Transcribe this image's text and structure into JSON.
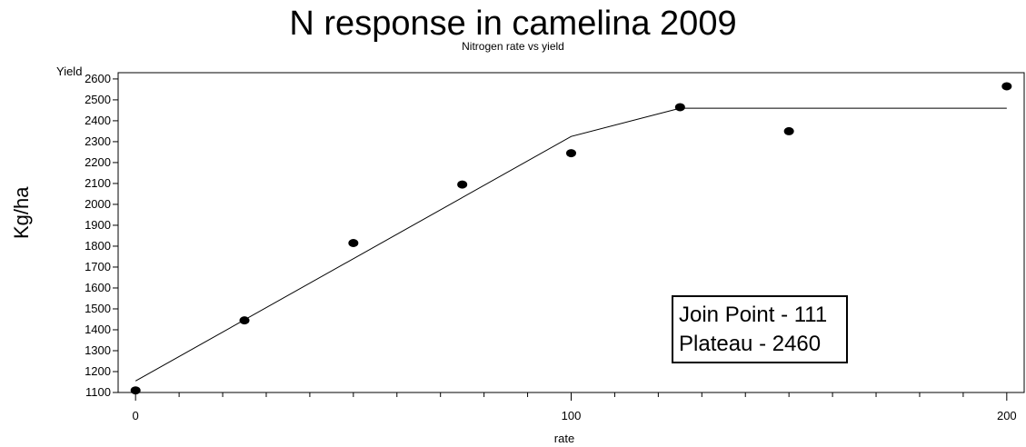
{
  "chart_data": {
    "type": "scatter",
    "title": "N response in camelina 2009",
    "subtitle": "Nitrogen rate vs yield",
    "ylabel": "Kg/ha",
    "yaxis_title": "Yield",
    "xlabel": "rate",
    "xlim": [
      -4,
      204
    ],
    "ylim": [
      1100,
      2630
    ],
    "x_ticks": [
      0,
      100,
      200
    ],
    "y_ticks": [
      1100,
      1200,
      1300,
      1400,
      1500,
      1600,
      1700,
      1800,
      1900,
      2000,
      2100,
      2200,
      2300,
      2400,
      2500,
      2600
    ],
    "grid": false,
    "series": [
      {
        "kind": "points",
        "x": [
          0,
          25,
          50,
          75,
          100,
          125,
          150,
          200
        ],
        "y": [
          1110,
          1445,
          1815,
          2095,
          2245,
          2465,
          2350,
          2565
        ]
      },
      {
        "kind": "fit-line",
        "x": [
          0,
          100,
          125,
          200
        ],
        "y": [
          1155,
          2325,
          2460,
          2460
        ]
      }
    ],
    "annotation": {
      "line1": "Join Point - 111",
      "line2": "Plateau - 2460"
    }
  }
}
